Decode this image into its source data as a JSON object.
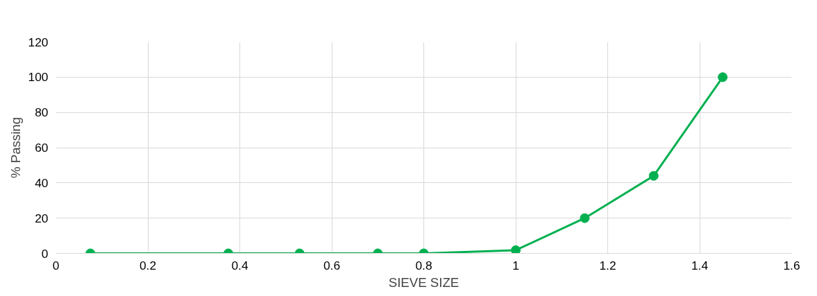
{
  "chart_data": {
    "type": "line",
    "xlabel": "SIEVE SIZE",
    "ylabel": "% Passing",
    "x": [
      0.075,
      0.375,
      0.53,
      0.7,
      0.8,
      1.0,
      1.15,
      1.3,
      1.45
    ],
    "series": [
      {
        "color": "#00b050",
        "values": [
          0,
          0,
          0,
          0,
          0,
          1.8,
          20,
          44,
          100
        ]
      }
    ],
    "xlim": [
      0,
      1.6
    ],
    "xticks": [
      0,
      0.2,
      0.4,
      0.6,
      0.8,
      1,
      1.2,
      1.4,
      1.6
    ],
    "ylim": [
      0,
      120
    ],
    "yticks": [
      0,
      20,
      40,
      60,
      80,
      100,
      120
    ],
    "grid": true,
    "marker": "circle",
    "line_style": "solid"
  }
}
